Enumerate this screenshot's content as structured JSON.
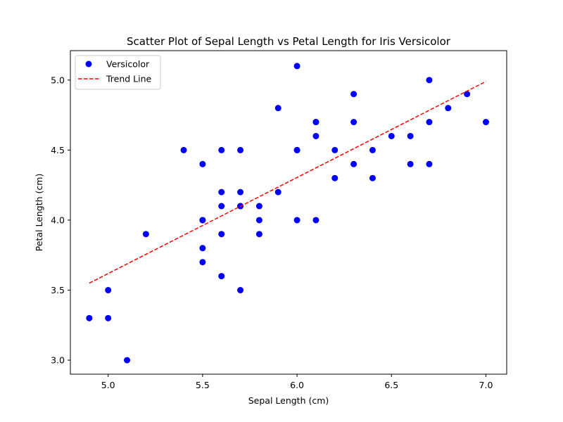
{
  "chart_data": {
    "type": "scatter",
    "title": "Scatter Plot of Sepal Length vs Petal Length for Iris Versicolor",
    "xlabel": "Sepal Length (cm)",
    "ylabel": "Petal Length (cm)",
    "xlim": [
      4.8,
      7.11
    ],
    "ylim": [
      2.9,
      5.21
    ],
    "xticks": [
      5.0,
      5.5,
      6.0,
      6.5,
      7.0
    ],
    "xtick_labels": [
      "5.0",
      "5.5",
      "6.0",
      "6.5",
      "7.0"
    ],
    "yticks": [
      3.0,
      3.5,
      4.0,
      4.5,
      5.0
    ],
    "ytick_labels": [
      "3.0",
      "3.5",
      "4.0",
      "4.5",
      "5.0"
    ],
    "grid": false,
    "legend_position": "top-left",
    "series": [
      {
        "name": "Versicolor",
        "kind": "scatter",
        "color": "#0000ff",
        "points": [
          [
            7.0,
            4.7
          ],
          [
            6.4,
            4.5
          ],
          [
            6.9,
            4.9
          ],
          [
            5.5,
            4.0
          ],
          [
            6.5,
            4.6
          ],
          [
            5.7,
            4.5
          ],
          [
            6.3,
            4.7
          ],
          [
            4.9,
            3.3
          ],
          [
            6.6,
            4.6
          ],
          [
            5.2,
            3.9
          ],
          [
            5.0,
            3.5
          ],
          [
            5.9,
            4.2
          ],
          [
            6.0,
            4.0
          ],
          [
            6.1,
            4.7
          ],
          [
            5.6,
            3.6
          ],
          [
            6.7,
            4.4
          ],
          [
            5.6,
            4.5
          ],
          [
            5.8,
            4.1
          ],
          [
            6.2,
            4.5
          ],
          [
            5.6,
            3.9
          ],
          [
            5.9,
            4.8
          ],
          [
            6.1,
            4.0
          ],
          [
            6.3,
            4.9
          ],
          [
            6.1,
            4.7
          ],
          [
            6.4,
            4.3
          ],
          [
            6.6,
            4.4
          ],
          [
            6.8,
            4.8
          ],
          [
            6.7,
            5.0
          ],
          [
            6.0,
            4.5
          ],
          [
            5.7,
            3.5
          ],
          [
            5.5,
            3.8
          ],
          [
            5.5,
            3.7
          ],
          [
            5.8,
            3.9
          ],
          [
            6.0,
            5.1
          ],
          [
            5.4,
            4.5
          ],
          [
            6.0,
            4.5
          ],
          [
            6.7,
            4.7
          ],
          [
            6.3,
            4.4
          ],
          [
            5.6,
            4.1
          ],
          [
            5.5,
            4.0
          ],
          [
            5.5,
            4.4
          ],
          [
            6.1,
            4.6
          ],
          [
            5.8,
            4.0
          ],
          [
            5.0,
            3.3
          ],
          [
            5.6,
            4.2
          ],
          [
            5.7,
            4.2
          ],
          [
            5.7,
            4.1
          ],
          [
            6.2,
            4.3
          ],
          [
            5.1,
            3.0
          ],
          [
            5.7,
            4.1
          ]
        ]
      },
      {
        "name": "Trend Line",
        "kind": "line",
        "style": "dashed",
        "color": "#ff0000",
        "x": [
          4.9,
          7.0
        ],
        "y": [
          3.55,
          4.99
        ]
      }
    ]
  }
}
